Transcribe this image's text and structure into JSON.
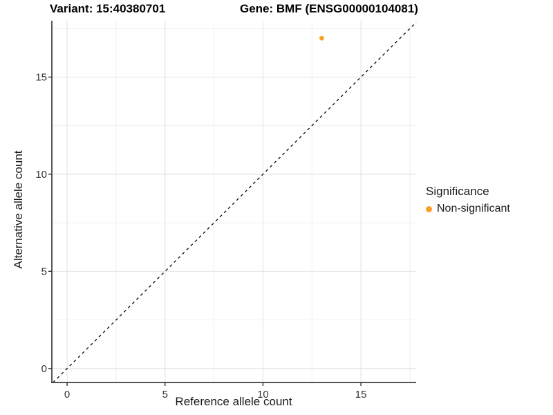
{
  "chart_data": {
    "type": "scatter",
    "title_left": "Variant: 15:40380701",
    "title_right": "Gene: BMF (ENSG00000104081)",
    "xlabel": "Reference allele count",
    "ylabel": "Alternative allele count",
    "xlim": [
      -0.78,
      17.82
    ],
    "ylim": [
      -0.72,
      17.9
    ],
    "x_ticks": [
      0,
      5,
      10,
      15
    ],
    "y_ticks": [
      0,
      5,
      10,
      15
    ],
    "x_minor_ticks": [
      2.5,
      7.5,
      12.5,
      17.5
    ],
    "y_minor_ticks": [
      2.5,
      7.5,
      12.5,
      17.5
    ],
    "grid": "major+minor",
    "reference_line": {
      "kind": "identity y=x",
      "style": "dashed",
      "color": "#000000"
    },
    "series": [
      {
        "name": "Non-significant",
        "color": "#F9A02C",
        "points": [
          {
            "x": 13,
            "y": 17
          }
        ]
      }
    ],
    "legend": {
      "title": "Significance",
      "position": "right",
      "entries": [
        {
          "label": "Non-significant",
          "color": "#F9A02C",
          "marker": "circle"
        }
      ]
    }
  },
  "colors": {
    "background": "#FFFFFF",
    "grid_major": "#E4E4E4",
    "grid_minor": "#F0F0F0",
    "axis_line": "#3A3A3A",
    "tick_mark": "#333333",
    "tick_text": "#333333"
  }
}
